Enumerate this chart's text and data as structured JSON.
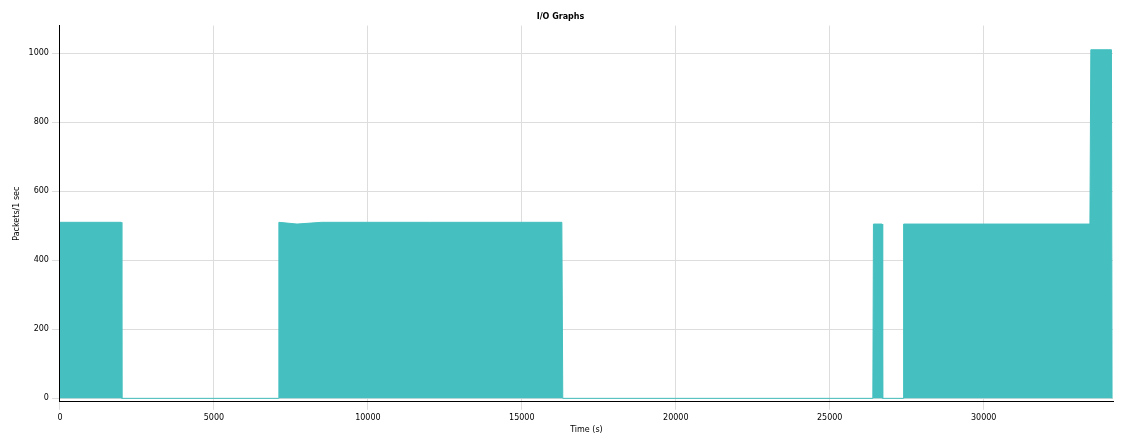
{
  "chart_data": {
    "type": "area",
    "title": "I/O Graphs",
    "xlabel": "Time (s)",
    "ylabel": "Packets/1 sec",
    "x": [
      0,
      1990,
      2010,
      7090,
      7110,
      7700,
      8500,
      12000,
      16300,
      16330,
      26400,
      26420,
      26700,
      26720,
      27380,
      27400,
      33450,
      33480,
      34150,
      34170
    ],
    "series": [
      {
        "color": "#45bfbf",
        "values": [
          510,
          510,
          0,
          0,
          510,
          505,
          510,
          510,
          510,
          0,
          0,
          505,
          505,
          0,
          0,
          505,
          505,
          1010,
          1010,
          0
        ]
      }
    ],
    "xlim": [
      0,
      34200
    ],
    "xticks": [
      0,
      5000,
      10000,
      15000,
      20000,
      25000,
      30000
    ],
    "ylim": [
      -10,
      1080
    ],
    "yticks": [
      0,
      200,
      400,
      600,
      800,
      1000
    ],
    "grid": true,
    "legend": false
  }
}
